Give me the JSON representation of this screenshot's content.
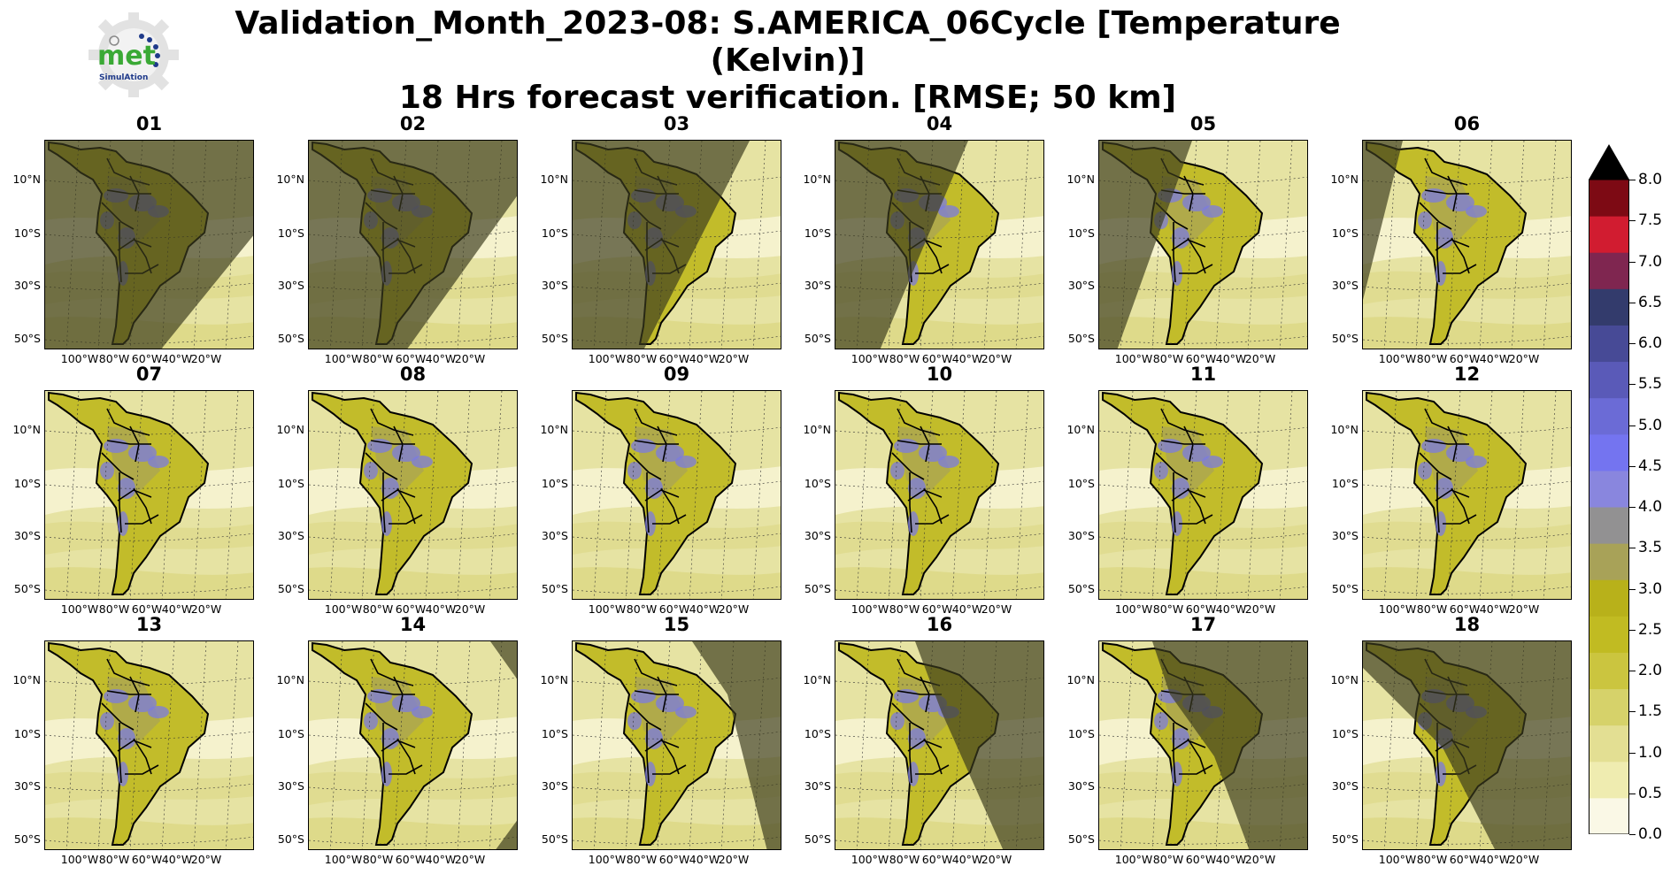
{
  "title": {
    "line1": "Validation_Month_2023-08: S.AMERICA_06Cycle [Temperature (Kelvin)]",
    "line2": "18 Hrs forecast verification.  [RMSE; 50 km]"
  },
  "logo": {
    "text": "met",
    "subtext": "SimulAtion"
  },
  "lat_labels": [
    "10°N",
    "10°S",
    "30°S",
    "50°S"
  ],
  "lon_labels": [
    "100°W",
    "80°W",
    "60°W",
    "40°W",
    "20°W"
  ],
  "panels": [
    {
      "label": "01",
      "shade": "west-big"
    },
    {
      "label": "02",
      "shade": "west-big2"
    },
    {
      "label": "03",
      "shade": "west-mid"
    },
    {
      "label": "04",
      "shade": "west-mid2"
    },
    {
      "label": "05",
      "shade": "west-small"
    },
    {
      "label": "06",
      "shade": "west-tiny"
    },
    {
      "label": "07",
      "shade": "none"
    },
    {
      "label": "08",
      "shade": "none"
    },
    {
      "label": "09",
      "shade": "none"
    },
    {
      "label": "10",
      "shade": "none"
    },
    {
      "label": "11",
      "shade": "none"
    },
    {
      "label": "12",
      "shade": "none"
    },
    {
      "label": "13",
      "shade": "none"
    },
    {
      "label": "14",
      "shade": "east-tiny"
    },
    {
      "label": "15",
      "shade": "east-small"
    },
    {
      "label": "16",
      "shade": "east-mid"
    },
    {
      "label": "17",
      "shade": "east-big"
    },
    {
      "label": "18",
      "shade": "east-huge"
    }
  ],
  "colorbar": {
    "ticks": [
      "8.0",
      "7.5",
      "7.0",
      "6.5",
      "6.0",
      "5.5",
      "5.0",
      "4.5",
      "4.0",
      "3.5",
      "3.0",
      "2.5",
      "2.0",
      "1.5",
      "1.0",
      "0.5",
      "0.0"
    ],
    "colors": [
      "#faf8e6",
      "#efecb0",
      "#e3df93",
      "#d6d26a",
      "#cbc53f",
      "#c1bb22",
      "#b8b11a",
      "#a8a258",
      "#929192",
      "#8986de",
      "#7474f0",
      "#6b6bd6",
      "#5a5ab8",
      "#474a96",
      "#333b6c",
      "#7f2650",
      "#d11c30",
      "#7d0a14"
    ],
    "extend_color": "#000000"
  }
}
